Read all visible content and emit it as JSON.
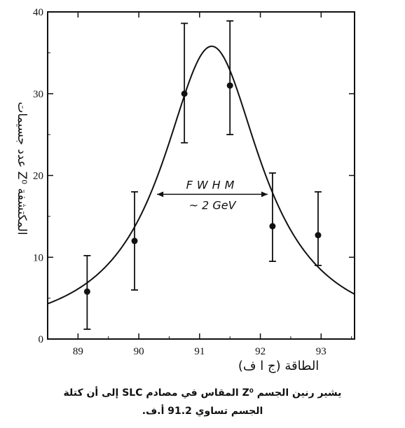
{
  "chart_data": {
    "type": "scatter",
    "x_ticks": [
      "89",
      "90",
      "91",
      "92",
      "93"
    ],
    "y_ticks": [
      "0",
      "10",
      "20",
      "30",
      "40"
    ],
    "xlim": [
      88.5,
      93.55
    ],
    "ylim": [
      0,
      40
    ],
    "xlabel": "الطاقة (ج ا ف)",
    "ylabel": "عدد جسيمات Z⁰ المكتشفة",
    "points": [
      {
        "x": 89.15,
        "y": 5.8,
        "err_low": 1.2,
        "err_high": 10.2
      },
      {
        "x": 89.93,
        "y": 12.0,
        "err_low": 6.0,
        "err_high": 18.0
      },
      {
        "x": 90.75,
        "y": 30.0,
        "err_low": 24.0,
        "err_high": 38.6
      },
      {
        "x": 91.5,
        "y": 31.0,
        "err_low": 25.0,
        "err_high": 38.9
      },
      {
        "x": 92.2,
        "y": 13.8,
        "err_low": 9.5,
        "err_high": 20.3
      },
      {
        "x": 92.95,
        "y": 12.7,
        "err_low": 9.0,
        "err_high": 18.0
      }
    ],
    "fit_curve": {
      "peak_x": 91.2,
      "peak_y": 35.8,
      "fwhm": 2.0
    },
    "annotation": {
      "line1": "FWHM",
      "line2": "~ 2 GeV",
      "x_from": 90.3,
      "x_to": 92.12,
      "y": 17.7
    },
    "grid": false
  },
  "caption": {
    "line1": "يشير رنين الجسم Z⁰ المقاس في مصادم SLC إلى أن كتلة",
    "line2": "الجسم تساوي 91.2 أ.ف."
  }
}
